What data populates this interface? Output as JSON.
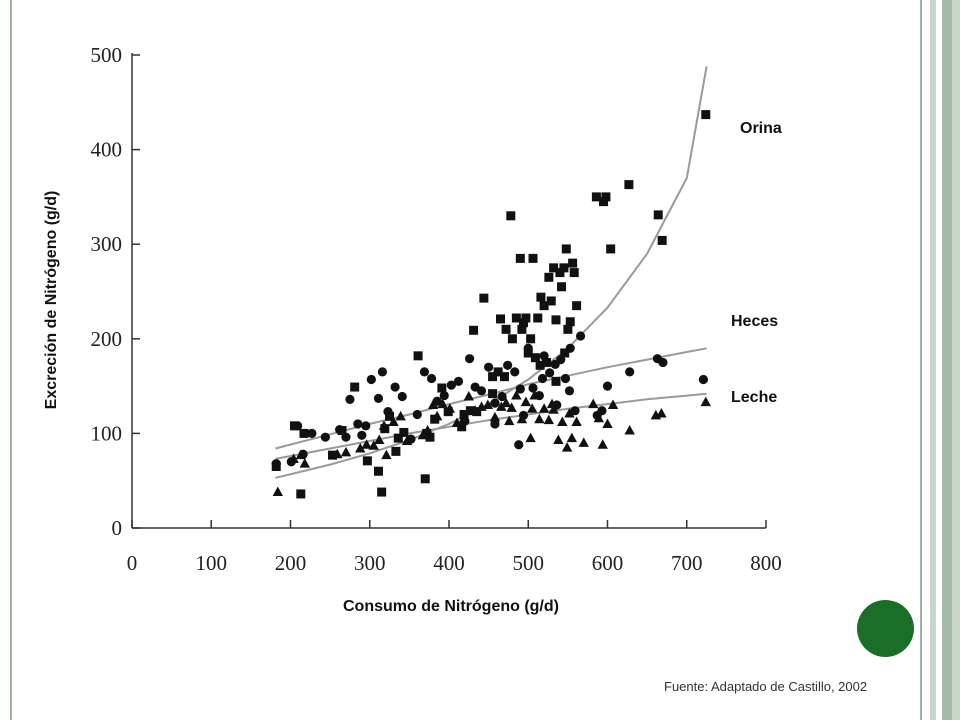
{
  "chart_data": {
    "type": "scatter",
    "title": "",
    "xlabel": "Consumo de Nitrógeno (g/d)",
    "ylabel": "Excreción de Nitrógeno (g/d)",
    "xlim": [
      0,
      800
    ],
    "ylim": [
      0,
      500
    ],
    "xticks": [
      0,
      100,
      200,
      300,
      400,
      500,
      600,
      700,
      800
    ],
    "yticks": [
      0,
      100,
      200,
      300,
      400,
      500
    ],
    "grid": false,
    "legend": "inline labels at right end of trend lines",
    "series": [
      {
        "name": "Orina",
        "marker": "square",
        "points": [
          [
            182,
            65
          ],
          [
            205,
            108
          ],
          [
            213,
            36
          ],
          [
            217,
            100
          ],
          [
            253,
            77
          ],
          [
            265,
            103
          ],
          [
            281,
            149
          ],
          [
            297,
            71
          ],
          [
            311,
            60
          ],
          [
            315,
            38
          ],
          [
            319,
            105
          ],
          [
            325,
            118
          ],
          [
            333,
            81
          ],
          [
            336,
            95
          ],
          [
            343,
            101
          ],
          [
            361,
            182
          ],
          [
            370,
            52
          ],
          [
            372,
            100
          ],
          [
            376,
            96
          ],
          [
            382,
            115
          ],
          [
            391,
            148
          ],
          [
            399,
            123
          ],
          [
            416,
            107
          ],
          [
            419,
            120
          ],
          [
            427,
            124
          ],
          [
            435,
            123
          ],
          [
            444,
            243
          ],
          [
            455,
            160
          ],
          [
            462,
            165
          ],
          [
            465,
            221
          ],
          [
            470,
            160
          ],
          [
            472,
            210
          ],
          [
            478,
            330
          ],
          [
            480,
            200
          ],
          [
            485,
            222
          ],
          [
            490,
            285
          ],
          [
            492,
            210
          ],
          [
            494,
            217
          ],
          [
            497,
            222
          ],
          [
            500,
            185
          ],
          [
            503,
            200
          ],
          [
            506,
            285
          ],
          [
            512,
            222
          ],
          [
            515,
            172
          ],
          [
            516,
            244
          ],
          [
            520,
            235
          ],
          [
            523,
            175
          ],
          [
            526,
            265
          ],
          [
            529,
            240
          ],
          [
            532,
            275
          ],
          [
            535,
            220
          ],
          [
            540,
            270
          ],
          [
            542,
            255
          ],
          [
            545,
            275
          ],
          [
            548,
            295
          ],
          [
            550,
            210
          ],
          [
            553,
            218
          ],
          [
            556,
            280
          ],
          [
            558,
            270
          ],
          [
            561,
            235
          ],
          [
            586,
            350
          ],
          [
            595,
            345
          ],
          [
            598,
            350
          ],
          [
            604,
            295
          ],
          [
            627,
            363
          ],
          [
            664,
            331
          ],
          [
            669,
            304
          ],
          [
            724,
            437
          ],
          [
            431,
            209
          ],
          [
            455,
            142
          ],
          [
            509,
            180
          ],
          [
            535,
            155
          ],
          [
            546,
            185
          ]
        ]
      },
      {
        "name": "Heces",
        "marker": "circle",
        "points": [
          [
            182,
            68
          ],
          [
            201,
            70
          ],
          [
            209,
            108
          ],
          [
            216,
            78
          ],
          [
            227,
            100
          ],
          [
            244,
            96
          ],
          [
            262,
            104
          ],
          [
            270,
            96
          ],
          [
            275,
            136
          ],
          [
            285,
            110
          ],
          [
            290,
            98
          ],
          [
            295,
            108
          ],
          [
            302,
            157
          ],
          [
            311,
            137
          ],
          [
            316,
            165
          ],
          [
            323,
            123
          ],
          [
            332,
            149
          ],
          [
            341,
            139
          ],
          [
            352,
            94
          ],
          [
            360,
            120
          ],
          [
            369,
            165
          ],
          [
            378,
            158
          ],
          [
            385,
            134
          ],
          [
            394,
            140
          ],
          [
            403,
            151
          ],
          [
            412,
            155
          ],
          [
            420,
            113
          ],
          [
            426,
            179
          ],
          [
            433,
            149
          ],
          [
            441,
            145
          ],
          [
            450,
            170
          ],
          [
            458,
            132
          ],
          [
            467,
            139
          ],
          [
            474,
            172
          ],
          [
            483,
            165
          ],
          [
            488,
            88
          ],
          [
            494,
            119
          ],
          [
            500,
            190
          ],
          [
            506,
            148
          ],
          [
            514,
            140
          ],
          [
            520,
            182
          ],
          [
            527,
            164
          ],
          [
            534,
            173
          ],
          [
            541,
            178
          ],
          [
            547,
            158
          ],
          [
            553,
            190
          ],
          [
            559,
            124
          ],
          [
            566,
            203
          ],
          [
            587,
            119
          ],
          [
            593,
            124
          ],
          [
            600,
            150
          ],
          [
            628,
            165
          ],
          [
            663,
            179
          ],
          [
            670,
            175
          ],
          [
            721,
            157
          ],
          [
            458,
            110
          ],
          [
            490,
            147
          ],
          [
            518,
            158
          ],
          [
            536,
            130
          ],
          [
            552,
            145
          ]
        ]
      },
      {
        "name": "Leche",
        "marker": "triangle",
        "points": [
          [
            184,
            38
          ],
          [
            204,
            73
          ],
          [
            213,
            77
          ],
          [
            218,
            68
          ],
          [
            259,
            78
          ],
          [
            270,
            80
          ],
          [
            288,
            84
          ],
          [
            296,
            88
          ],
          [
            305,
            87
          ],
          [
            312,
            93
          ],
          [
            318,
            108
          ],
          [
            321,
            77
          ],
          [
            330,
            112
          ],
          [
            339,
            118
          ],
          [
            347,
            92
          ],
          [
            367,
            98
          ],
          [
            373,
            103
          ],
          [
            380,
            130
          ],
          [
            385,
            118
          ],
          [
            392,
            131
          ],
          [
            401,
            126
          ],
          [
            410,
            111
          ],
          [
            419,
            116
          ],
          [
            425,
            139
          ],
          [
            433,
            124
          ],
          [
            441,
            128
          ],
          [
            449,
            130
          ],
          [
            458,
            117
          ],
          [
            466,
            128
          ],
          [
            472,
            132
          ],
          [
            479,
            127
          ],
          [
            485,
            140
          ],
          [
            492,
            115
          ],
          [
            497,
            133
          ],
          [
            503,
            95
          ],
          [
            508,
            140
          ],
          [
            514,
            115
          ],
          [
            520,
            126
          ],
          [
            526,
            114
          ],
          [
            532,
            125
          ],
          [
            538,
            93
          ],
          [
            543,
            112
          ],
          [
            549,
            85
          ],
          [
            555,
            95
          ],
          [
            561,
            112
          ],
          [
            570,
            90
          ],
          [
            582,
            131
          ],
          [
            589,
            116
          ],
          [
            594,
            88
          ],
          [
            600,
            110
          ],
          [
            607,
            130
          ],
          [
            628,
            103
          ],
          [
            661,
            119
          ],
          [
            668,
            121
          ],
          [
            724,
            133
          ],
          [
            476,
            113
          ],
          [
            505,
            126
          ],
          [
            530,
            131
          ],
          [
            552,
            121
          ]
        ]
      }
    ],
    "curves": [
      {
        "name": "Orina",
        "x": [
          181,
          250,
          300,
          350,
          400,
          450,
          500,
          550,
          600,
          650,
          700,
          725
        ],
        "y": [
          53,
          67,
          79,
          93,
          110,
          131,
          157,
          190,
          233,
          290,
          370,
          488
        ]
      },
      {
        "name": "Heces",
        "x": [
          181,
          250,
          300,
          350,
          400,
          450,
          500,
          550,
          600,
          650,
          700,
          725
        ],
        "y": [
          84,
          99,
          110,
          120,
          131,
          141,
          152,
          161,
          170,
          178,
          186,
          190
        ]
      },
      {
        "name": "Leche",
        "x": [
          181,
          250,
          300,
          350,
          400,
          450,
          500,
          550,
          600,
          650,
          700,
          725
        ],
        "y": [
          73,
          84,
          92,
          100,
          107,
          114,
          120,
          126,
          131,
          136,
          140,
          142
        ]
      }
    ]
  },
  "source_note": "Fuente: Adaptado de Castillo, 2002",
  "colors": {
    "marker": "#111111",
    "curve": "#9a9a9a",
    "axis": "#333333",
    "accent_circle": "#1a6e28"
  }
}
